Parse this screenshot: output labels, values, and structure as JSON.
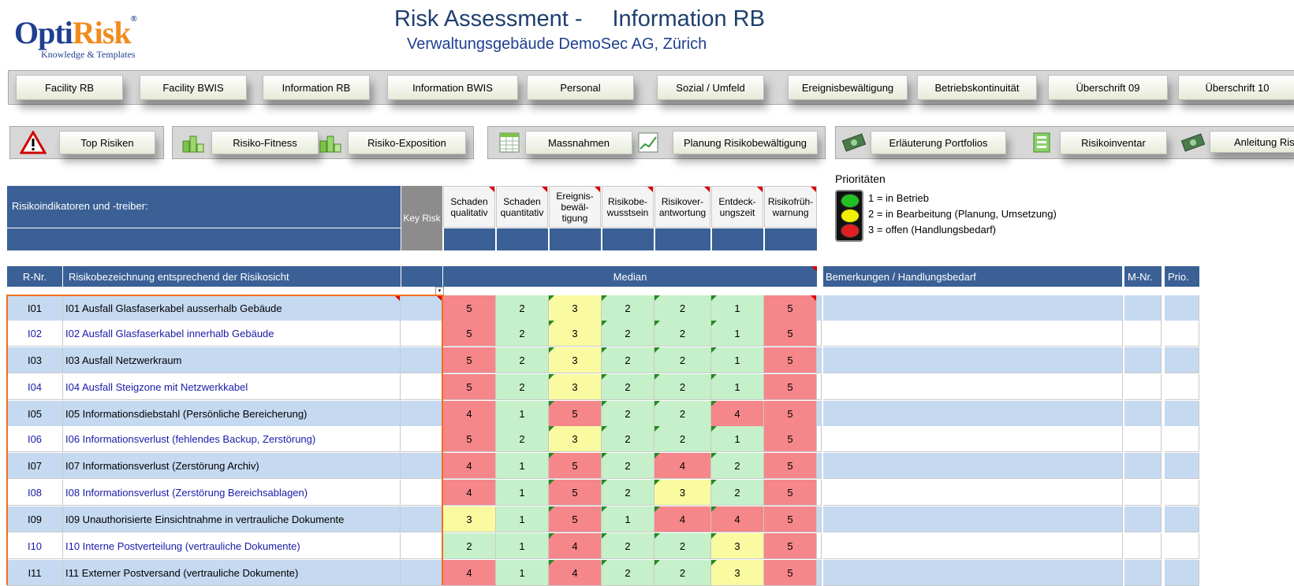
{
  "logo": {
    "opti": "Opti",
    "risk": "Risk",
    "reg": "®",
    "sub": "Knowledge & Templates"
  },
  "title": {
    "left": "Risk Assessment -",
    "right": "Information  RB"
  },
  "subtitle": "Verwaltungsgebäude DemoSec AG, Zürich",
  "nav": [
    "Facility RB",
    "Facility BWIS",
    "Information  RB",
    "Information  BWIS",
    "Personal",
    "Sozial / Umfeld",
    "Ereignisbewältigung",
    "Betriebskontinuität",
    "Überschrift 09",
    "Überschrift 10"
  ],
  "toolbar": [
    "Top Risiken",
    "Risiko-Fitness",
    "Risiko-Exposition",
    "Massnahmen",
    "Planung Risikobewältigung",
    "Erläuterung Portfolios",
    "Risikoinventar",
    "Anleitung Risik"
  ],
  "indicators": {
    "label": "Risikoindikatoren und -treiber:",
    "key_risk": "Key Risk",
    "columns": [
      [
        "Schaden",
        "qualitativ"
      ],
      [
        "Schaden",
        "quantitativ"
      ],
      [
        "Ereignis-",
        "bewäl-",
        "tigung"
      ],
      [
        "Risikobe-",
        "wusstsein"
      ],
      [
        "Risikover-",
        "antwortung"
      ],
      [
        "Entdeck-",
        "ungszeit"
      ],
      [
        "Risikofrüh-",
        "warnung"
      ]
    ]
  },
  "priorities": {
    "title": "Prioritäten",
    "items": [
      "1 = in Betrieb",
      "2 = in Bearbeitung (Planung, Umsetzung)",
      "3 = offen (Handlungsbedarf)"
    ],
    "colors": [
      "#22c022",
      "#f0f000",
      "#e02020"
    ]
  },
  "table": {
    "headers": {
      "rnr": "R-Nr.",
      "name": "Risikobezeichnung entsprechend der Risikosicht",
      "median": "Median",
      "remarks": "Bemerkungen / Handlungsbedarf",
      "mnr": "M-Nr.",
      "prio": "Prio."
    },
    "rows": [
      {
        "id": "I01",
        "name": "I01  Ausfall Glasfaserkabel ausserhalb Gebäude",
        "values": [
          5,
          2,
          3,
          2,
          2,
          1,
          5
        ]
      },
      {
        "id": "I02",
        "name": "I02  Ausfall Glasfaserkabel innerhalb Gebäude",
        "values": [
          5,
          2,
          3,
          2,
          2,
          1,
          5
        ]
      },
      {
        "id": "I03",
        "name": "I03  Ausfall Netzwerkraum",
        "values": [
          5,
          2,
          3,
          2,
          2,
          1,
          5
        ]
      },
      {
        "id": "I04",
        "name": "I04  Ausfall Steigzone mit Netzwerkkabel",
        "values": [
          5,
          2,
          3,
          2,
          2,
          1,
          5
        ]
      },
      {
        "id": "I05",
        "name": "I05  Informationsdiebstahl (Persönliche Bereicherung)",
        "values": [
          4,
          1,
          5,
          2,
          2,
          4,
          5
        ]
      },
      {
        "id": "I06",
        "name": "I06  Informationsverlust (fehlendes Backup, Zerstörung)",
        "values": [
          5,
          2,
          3,
          2,
          2,
          1,
          5
        ]
      },
      {
        "id": "I07",
        "name": "I07  Informationsverlust (Zerstörung Archiv)",
        "values": [
          4,
          1,
          5,
          2,
          4,
          2,
          5
        ]
      },
      {
        "id": "I08",
        "name": "I08  Informationsverlust (Zerstörung Bereichsablagen)",
        "values": [
          4,
          1,
          5,
          2,
          3,
          2,
          5
        ]
      },
      {
        "id": "I09",
        "name": "I09  Unauthorisierte Einsichtnahme in vertrauliche Dokumente",
        "values": [
          3,
          1,
          5,
          1,
          4,
          4,
          5
        ]
      },
      {
        "id": "I10",
        "name": "I10  Interne Postverteilung (vertrauliche Dokumente)",
        "values": [
          2,
          1,
          4,
          2,
          2,
          3,
          5
        ]
      },
      {
        "id": "I11",
        "name": "I11  Externer Postversand (vertrauliche Dokumente)",
        "values": [
          4,
          1,
          4,
          2,
          2,
          3,
          5
        ]
      }
    ]
  },
  "colors": {
    "header_blue": "#3a6095",
    "row_blue": "#c5d9f1",
    "cell_red": "#f5868a",
    "cell_green": "#c6f0c9",
    "cell_yellow": "#fafaa0",
    "odd_text": "#000000",
    "even_text": "#1a1aa8"
  },
  "icons": [
    "warning-icon",
    "cubes-icon",
    "cubes-icon",
    "table-icon",
    "chart-icon",
    "money-icon",
    "inventory-icon",
    "money-icon"
  ]
}
